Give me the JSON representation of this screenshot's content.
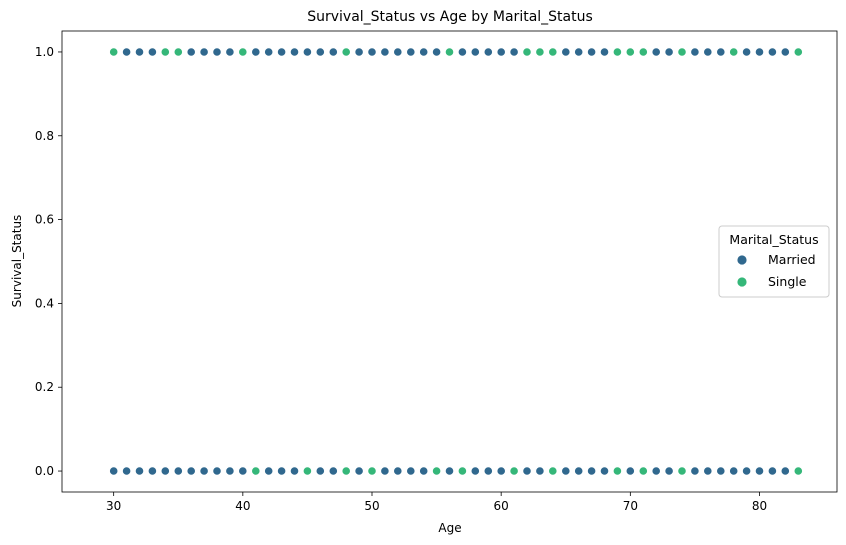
{
  "chart_data": {
    "type": "scatter",
    "title": "Survival_Status vs Age by Marital_Status",
    "xlabel": "Age",
    "ylabel": "Survival_Status",
    "xlim": [
      26,
      86
    ],
    "ylim": [
      -0.05,
      1.05
    ],
    "xticks": [
      30,
      40,
      50,
      60,
      70,
      80
    ],
    "xtick_labels": [
      "30",
      "40",
      "50",
      "60",
      "70",
      "80"
    ],
    "yticks": [
      0.0,
      0.2,
      0.4,
      0.6,
      0.8,
      1.0
    ],
    "ytick_labels": [
      "0.0",
      "0.2",
      "0.4",
      "0.6",
      "0.8",
      "1.0"
    ],
    "grid": false,
    "legend": {
      "title": "Marital_Status",
      "placement": "center-right",
      "entries": [
        "Married",
        "Single"
      ]
    },
    "series": [
      {
        "name": "Married",
        "color": "#30688e",
        "points": [
          [
            30,
            1
          ],
          [
            31,
            1
          ],
          [
            32,
            1
          ],
          [
            33,
            1
          ],
          [
            36,
            1
          ],
          [
            37,
            1
          ],
          [
            38,
            1
          ],
          [
            39,
            1
          ],
          [
            41,
            1
          ],
          [
            42,
            1
          ],
          [
            43,
            1
          ],
          [
            44,
            1
          ],
          [
            45,
            1
          ],
          [
            46,
            1
          ],
          [
            47,
            1
          ],
          [
            49,
            1
          ],
          [
            50,
            1
          ],
          [
            51,
            1
          ],
          [
            52,
            1
          ],
          [
            53,
            1
          ],
          [
            54,
            1
          ],
          [
            55,
            1
          ],
          [
            57,
            1
          ],
          [
            58,
            1
          ],
          [
            59,
            1
          ],
          [
            60,
            1
          ],
          [
            61,
            1
          ],
          [
            65,
            1
          ],
          [
            66,
            1
          ],
          [
            67,
            1
          ],
          [
            68,
            1
          ],
          [
            72,
            1
          ],
          [
            73,
            1
          ],
          [
            75,
            1
          ],
          [
            76,
            1
          ],
          [
            77,
            1
          ],
          [
            79,
            1
          ],
          [
            80,
            1
          ],
          [
            81,
            1
          ],
          [
            82,
            1
          ],
          [
            30,
            0
          ],
          [
            31,
            0
          ],
          [
            32,
            0
          ],
          [
            33,
            0
          ],
          [
            34,
            0
          ],
          [
            35,
            0
          ],
          [
            36,
            0
          ],
          [
            37,
            0
          ],
          [
            38,
            0
          ],
          [
            39,
            0
          ],
          [
            40,
            0
          ],
          [
            42,
            0
          ],
          [
            43,
            0
          ],
          [
            44,
            0
          ],
          [
            46,
            0
          ],
          [
            47,
            0
          ],
          [
            49,
            0
          ],
          [
            51,
            0
          ],
          [
            52,
            0
          ],
          [
            53,
            0
          ],
          [
            54,
            0
          ],
          [
            56,
            0
          ],
          [
            58,
            0
          ],
          [
            59,
            0
          ],
          [
            60,
            0
          ],
          [
            62,
            0
          ],
          [
            63,
            0
          ],
          [
            65,
            0
          ],
          [
            66,
            0
          ],
          [
            67,
            0
          ],
          [
            68,
            0
          ],
          [
            70,
            0
          ],
          [
            72,
            0
          ],
          [
            73,
            0
          ],
          [
            75,
            0
          ],
          [
            76,
            0
          ],
          [
            77,
            0
          ],
          [
            78,
            0
          ],
          [
            79,
            0
          ],
          [
            80,
            0
          ],
          [
            81,
            0
          ],
          [
            82,
            0
          ]
        ]
      },
      {
        "name": "Single",
        "color": "#35b779",
        "points": [
          [
            30,
            1
          ],
          [
            34,
            1
          ],
          [
            35,
            1
          ],
          [
            40,
            1
          ],
          [
            48,
            1
          ],
          [
            56,
            1
          ],
          [
            62,
            1
          ],
          [
            63,
            1
          ],
          [
            64,
            1
          ],
          [
            69,
            1
          ],
          [
            70,
            1
          ],
          [
            71,
            1
          ],
          [
            74,
            1
          ],
          [
            78,
            1
          ],
          [
            83,
            1
          ],
          [
            41,
            0
          ],
          [
            45,
            0
          ],
          [
            48,
            0
          ],
          [
            50,
            0
          ],
          [
            55,
            0
          ],
          [
            57,
            0
          ],
          [
            61,
            0
          ],
          [
            64,
            0
          ],
          [
            69,
            0
          ],
          [
            71,
            0
          ],
          [
            74,
            0
          ],
          [
            83,
            0
          ]
        ]
      }
    ]
  }
}
